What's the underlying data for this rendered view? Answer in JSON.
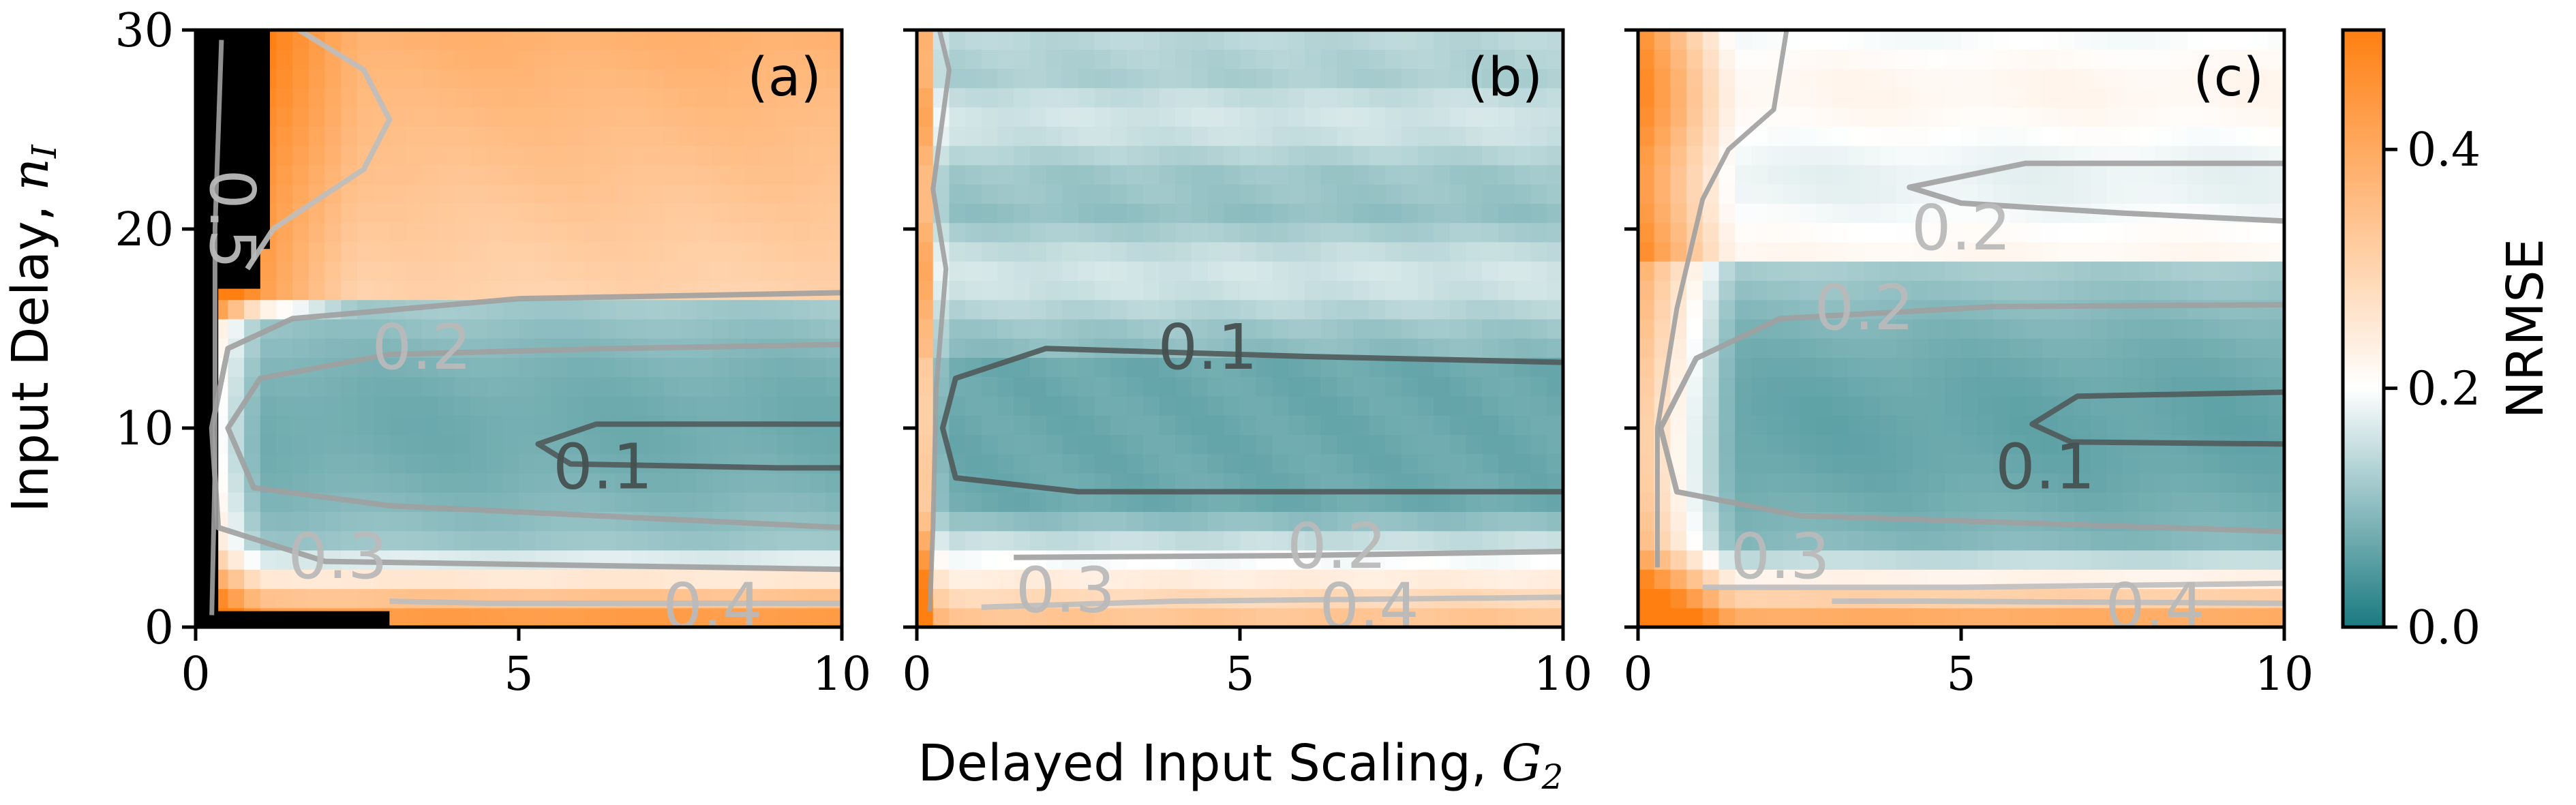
{
  "chart_data": [
    {
      "type": "heatmap",
      "panel_label": "(a)",
      "x_range": [
        0,
        10
      ],
      "y_range": [
        0,
        30
      ],
      "x_ticks": [
        "0",
        "5",
        "10"
      ],
      "y_ticks": [
        "0",
        "10",
        "20",
        "30"
      ],
      "ylabel": "Input Delay,",
      "ylabel_symbol": "n",
      "ylabel_subscript": "I",
      "profile_mode": "a",
      "contours": [
        {
          "level": "0.1",
          "label_at": [
            1.3,
            8.0
          ]
        },
        {
          "level": "0.2",
          "label_at": [
            -1.5,
            14.0
          ]
        },
        {
          "level": "0.3",
          "label_at": [
            -2.8,
            3.5
          ]
        },
        {
          "level": "0.4",
          "label_at": [
            3.0,
            1.0
          ]
        },
        {
          "level": "0.5",
          "label_at": [
            -4.6,
            20.5
          ]
        }
      ]
    },
    {
      "type": "heatmap",
      "panel_label": "(b)",
      "x_range": [
        0,
        10
      ],
      "y_range": [
        0,
        30
      ],
      "x_ticks": [
        "0",
        "5",
        "10"
      ],
      "profile_mode": "b",
      "contours": [
        {
          "level": "0.1",
          "label_at": [
            -0.5,
            14.0
          ]
        },
        {
          "level": "0.2",
          "label_at": [
            1.5,
            4.0
          ]
        },
        {
          "level": "0.3",
          "label_at": [
            -2.7,
            1.8
          ]
        },
        {
          "level": "0.4",
          "label_at": [
            2.0,
            1.0
          ]
        }
      ]
    },
    {
      "type": "heatmap",
      "panel_label": "(c)",
      "x_range": [
        0,
        10
      ],
      "y_range": [
        0,
        30
      ],
      "x_ticks": [
        "0",
        "5",
        "10"
      ],
      "profile_mode": "c",
      "contours": [
        {
          "level": "0.1",
          "label_at": [
            1.3,
            8.0
          ]
        },
        {
          "level": "0.2",
          "label_at": [
            -1.5,
            16.0
          ]
        },
        {
          "level": "0.2",
          "label_at": [
            0.0,
            20.0
          ]
        },
        {
          "level": "0.3",
          "label_at": [
            -2.8,
            3.5
          ]
        },
        {
          "level": "0.4",
          "label_at": [
            3.0,
            1.0
          ]
        }
      ]
    }
  ],
  "shared": {
    "xlabel": "Delayed Input Scaling,",
    "xlabel_symbol": "G",
    "xlabel_subscript": "2"
  },
  "colorbar": {
    "label": "NRMSE",
    "range": [
      0.0,
      0.5
    ],
    "ticks": [
      "0.0",
      "0.2",
      "0.4"
    ],
    "colors": {
      "low": "#1a7a80",
      "mid": "#ffffff",
      "high": "#ff7f11"
    }
  }
}
